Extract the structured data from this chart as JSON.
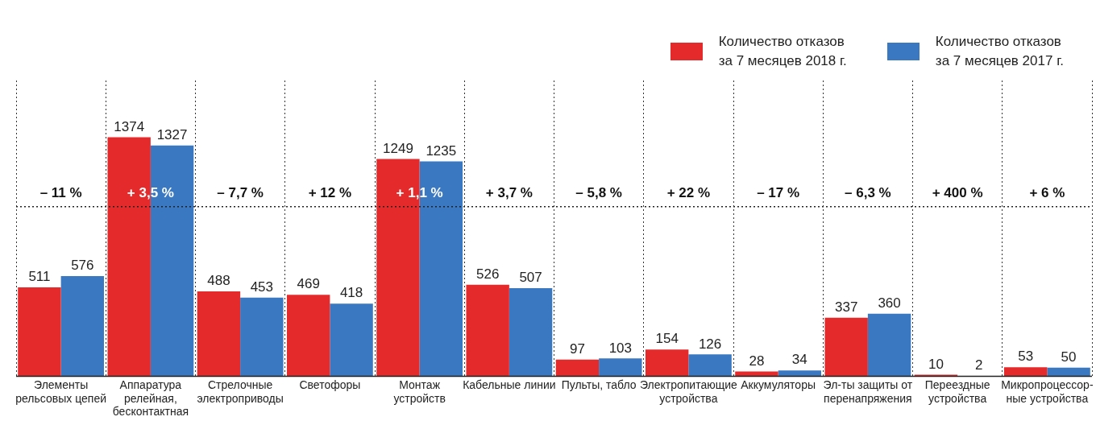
{
  "chart_data": {
    "type": "bar",
    "categories": [
      "Элементы\nрельсовых цепей",
      "Аппаратура\nрелейная,\nбесконтактная",
      "Стрелочные\nэлектроприводы",
      "Светофоры",
      "Монтаж\nустройств",
      "Кабельные линии",
      "Пульты, табло",
      "Электропитающие\nустройства",
      "Аккумуляторы",
      "Эл-ты защиты от\nперенапряжения",
      "Переездные\nустройства",
      "Микропроцессор-\nные устройства"
    ],
    "series": [
      {
        "name": "Количество отказов\nза 7 месяцев 2018 г.",
        "color": "#e52a2c",
        "values": [
          511,
          1374,
          488,
          469,
          1249,
          526,
          97,
          154,
          28,
          337,
          10,
          53
        ]
      },
      {
        "name": "Количество отказов\nза 7 месяцев 2017 г.",
        "color": "#3a78c2",
        "values": [
          576,
          1327,
          453,
          418,
          1235,
          507,
          103,
          126,
          34,
          360,
          2,
          50
        ]
      }
    ],
    "ylim": [
      0,
      1700
    ],
    "data_labels": true,
    "tick_labels": "x",
    "grid": "x",
    "legend": "top right",
    "ref_lines": [
      {
        "axis": "y",
        "value": 975,
        "line_style": "dotted"
      }
    ],
    "annotations": [
      "– 11 %",
      "+ 3,5 %",
      "– 7,7 %",
      "+ 12 %",
      "+ 1,1 %",
      "+ 3,7 %",
      "– 5,8 %",
      "+ 22 %",
      "– 17 %",
      "– 6,3 %",
      "+ 400 %",
      "+ 6 %"
    ]
  }
}
